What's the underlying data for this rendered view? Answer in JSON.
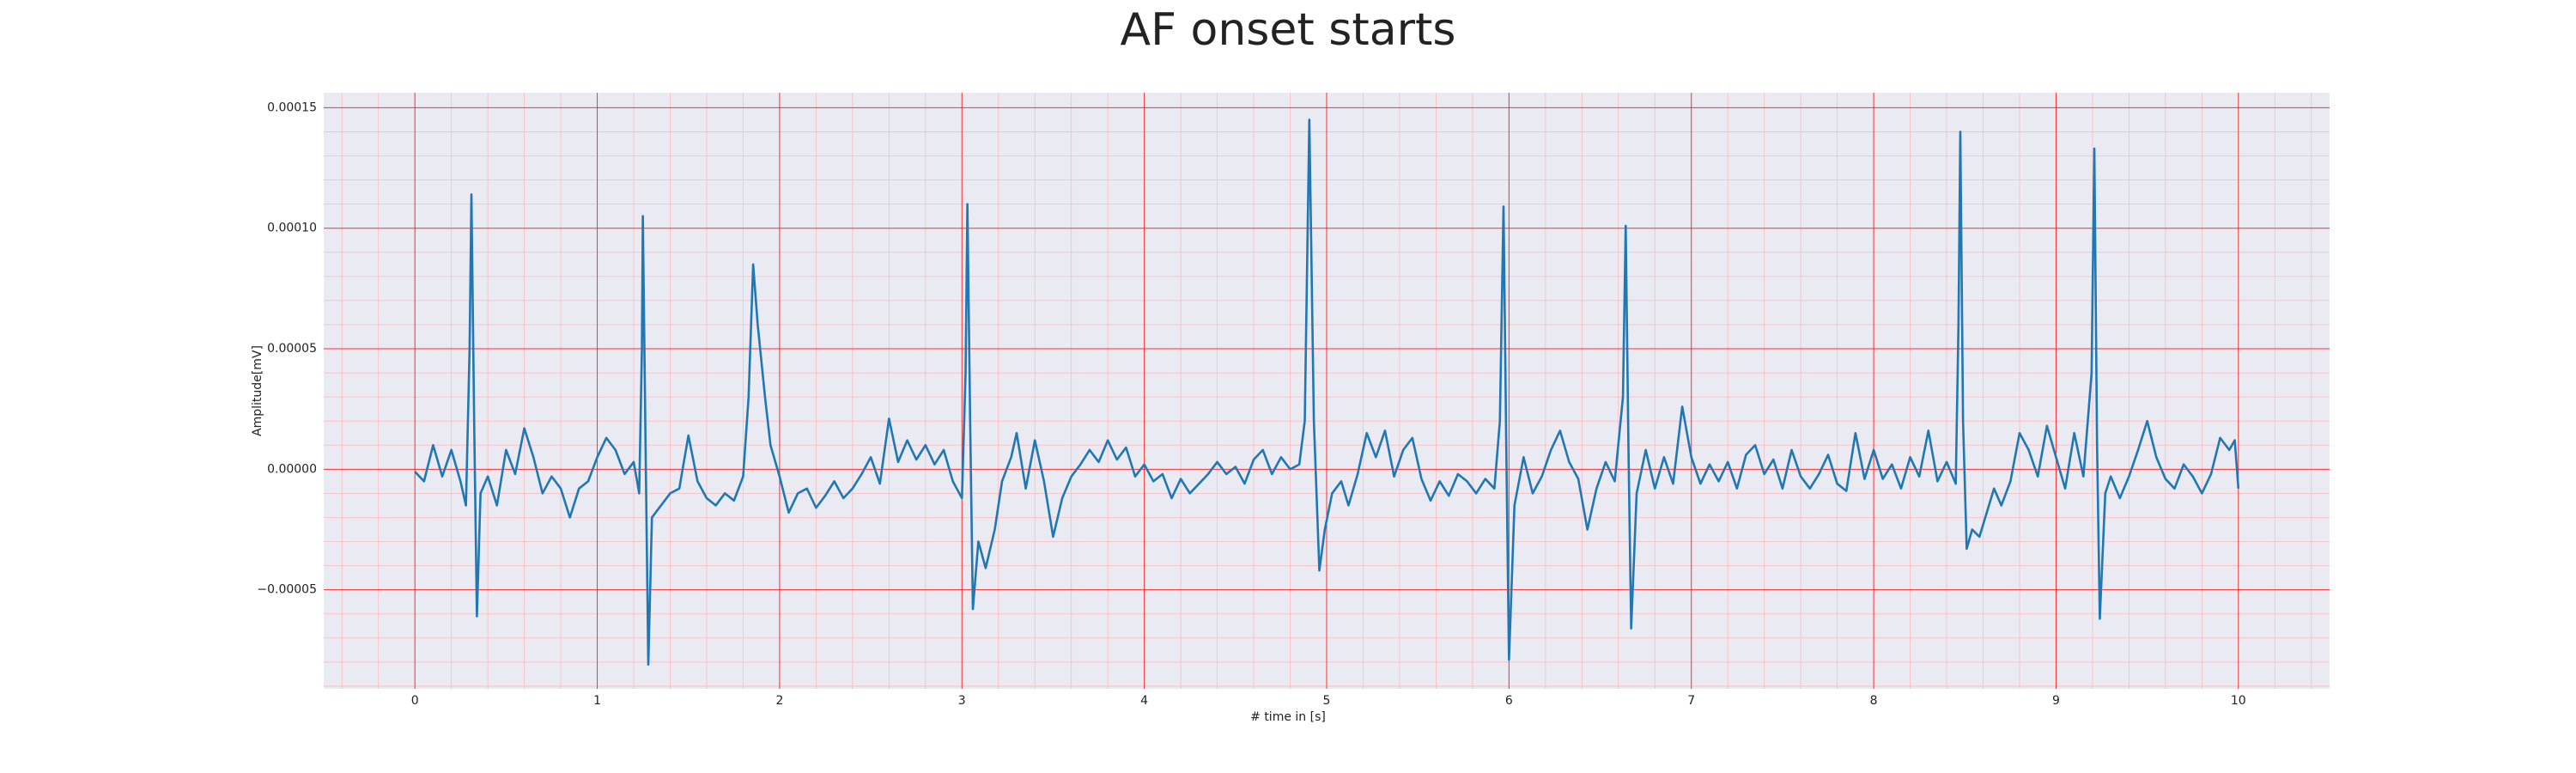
{
  "chart_data": {
    "type": "line",
    "title": "AF onset starts",
    "xlabel": "# time in [s]",
    "ylabel": "Amplitude[mV]",
    "color": "#1f77b4",
    "xlim": [
      -0.5,
      10.5
    ],
    "xticks": [
      0,
      1,
      2,
      3,
      4,
      5,
      6,
      7,
      8,
      9,
      10
    ],
    "ylim": [
      -9.11e-05,
      0.0001562
    ],
    "yticks": [
      {
        "value": -5e-05,
        "label": "−0.00005"
      },
      {
        "value": 0,
        "label": "0.00000"
      },
      {
        "value": 5e-05,
        "label": "0.00005"
      },
      {
        "value": 0.0001,
        "label": "0.00010"
      },
      {
        "value": 0.00015,
        "label": "0.00015"
      }
    ],
    "grid": true,
    "minor_grid_divisions": 5,
    "x": [
      0.0,
      0.05,
      0.1,
      0.15,
      0.2,
      0.25,
      0.28,
      0.3,
      0.31,
      0.325,
      0.34,
      0.36,
      0.4,
      0.45,
      0.5,
      0.55,
      0.6,
      0.65,
      0.7,
      0.75,
      0.8,
      0.85,
      0.9,
      0.95,
      1.0,
      1.05,
      1.1,
      1.15,
      1.2,
      1.23,
      1.245,
      1.25,
      1.265,
      1.28,
      1.3,
      1.35,
      1.4,
      1.45,
      1.5,
      1.55,
      1.6,
      1.65,
      1.7,
      1.75,
      1.8,
      1.83,
      1.855,
      1.88,
      1.92,
      1.95,
      2.0,
      2.05,
      2.1,
      2.15,
      2.2,
      2.25,
      2.3,
      2.35,
      2.4,
      2.45,
      2.5,
      2.55,
      2.6,
      2.65,
      2.7,
      2.75,
      2.8,
      2.85,
      2.9,
      2.95,
      3.0,
      3.02,
      3.03,
      3.045,
      3.06,
      3.09,
      3.13,
      3.18,
      3.22,
      3.27,
      3.3,
      3.35,
      3.4,
      3.45,
      3.5,
      3.55,
      3.6,
      3.65,
      3.7,
      3.75,
      3.8,
      3.85,
      3.9,
      3.95,
      4.0,
      4.05,
      4.1,
      4.15,
      4.2,
      4.25,
      4.3,
      4.35,
      4.4,
      4.45,
      4.5,
      4.55,
      4.6,
      4.65,
      4.7,
      4.75,
      4.8,
      4.85,
      4.88,
      4.905,
      4.93,
      4.96,
      4.99,
      5.03,
      5.08,
      5.12,
      5.17,
      5.22,
      5.27,
      5.32,
      5.37,
      5.42,
      5.47,
      5.52,
      5.57,
      5.62,
      5.67,
      5.72,
      5.77,
      5.82,
      5.87,
      5.92,
      5.95,
      5.97,
      5.985,
      6.0,
      6.03,
      6.08,
      6.13,
      6.18,
      6.23,
      6.28,
      6.33,
      6.38,
      6.43,
      6.48,
      6.53,
      6.58,
      6.625,
      6.64,
      6.655,
      6.67,
      6.7,
      6.75,
      6.8,
      6.85,
      6.9,
      6.95,
      7.0,
      7.05,
      7.1,
      7.15,
      7.2,
      7.25,
      7.3,
      7.35,
      7.4,
      7.45,
      7.5,
      7.55,
      7.6,
      7.65,
      7.7,
      7.75,
      7.8,
      7.85,
      7.9,
      7.95,
      8.0,
      8.05,
      8.1,
      8.15,
      8.2,
      8.25,
      8.3,
      8.35,
      8.4,
      8.45,
      8.465,
      8.475,
      8.49,
      8.51,
      8.54,
      8.58,
      8.62,
      8.66,
      8.7,
      8.75,
      8.8,
      8.85,
      8.9,
      8.95,
      9.0,
      9.05,
      9.1,
      9.15,
      9.195,
      9.21,
      9.225,
      9.24,
      9.27,
      9.3,
      9.35,
      9.4,
      9.45,
      9.5,
      9.55,
      9.6,
      9.65,
      9.7,
      9.75,
      9.8,
      9.85,
      9.9,
      9.95,
      9.98,
      10.0
    ],
    "values": [
      -1e-06,
      -5e-06,
      1e-05,
      -3e-06,
      8e-06,
      -5e-06,
      -1.5e-05,
      5e-05,
      0.000114,
      2e-05,
      -6.1e-05,
      -1e-05,
      -3e-06,
      -1.5e-05,
      8e-06,
      -2e-06,
      1.7e-05,
      5e-06,
      -1e-05,
      -3e-06,
      -8e-06,
      -2e-05,
      -8e-06,
      -5e-06,
      5e-06,
      1.3e-05,
      8e-06,
      -2e-06,
      3e-06,
      -1e-05,
      5e-05,
      0.000105,
      1e-05,
      -8.1e-05,
      -2e-05,
      -1.5e-05,
      -1e-05,
      -8e-06,
      1.4e-05,
      -5e-06,
      -1.2e-05,
      -1.5e-05,
      -1e-05,
      -1.3e-05,
      -3e-06,
      3e-05,
      8.5e-05,
      6e-05,
      3e-05,
      1e-05,
      -3e-06,
      -1.8e-05,
      -1e-05,
      -8e-06,
      -1.6e-05,
      -1.1e-05,
      -5e-06,
      -1.2e-05,
      -8e-06,
      -2e-06,
      5e-06,
      -6e-06,
      2.1e-05,
      3e-06,
      1.2e-05,
      4e-06,
      1e-05,
      2e-06,
      8e-06,
      -5e-06,
      -1.2e-05,
      4e-05,
      0.00011,
      2e-05,
      -5.8e-05,
      -3e-05,
      -4.1e-05,
      -2.5e-05,
      -5e-06,
      5e-06,
      1.5e-05,
      -8e-06,
      1.2e-05,
      -5e-06,
      -2.8e-05,
      -1.2e-05,
      -3e-06,
      2e-06,
      8e-06,
      3e-06,
      1.2e-05,
      4e-06,
      9e-06,
      -3e-06,
      2e-06,
      -5e-06,
      -2e-06,
      -1.2e-05,
      -4e-06,
      -1e-05,
      -6e-06,
      -2e-06,
      3e-06,
      -2e-06,
      1e-06,
      -6e-06,
      4e-06,
      8e-06,
      -2e-06,
      5e-06,
      0.0,
      2e-06,
      2e-05,
      0.000145,
      2e-05,
      -4.2e-05,
      -2.5e-05,
      -1e-05,
      -5e-06,
      -1.5e-05,
      -2e-06,
      1.5e-05,
      5e-06,
      1.6e-05,
      -3e-06,
      8e-06,
      1.3e-05,
      -4e-06,
      -1.3e-05,
      -5e-06,
      -1.1e-05,
      -2e-06,
      -5e-06,
      -1e-05,
      -4e-06,
      -8e-06,
      2e-05,
      0.000109,
      1e-05,
      -7.9e-05,
      -1.5e-05,
      5e-06,
      -1e-05,
      -3e-06,
      8e-06,
      1.6e-05,
      3e-06,
      -4e-06,
      -2.5e-05,
      -8e-06,
      3e-06,
      -5e-06,
      3e-05,
      0.000101,
      1e-05,
      -6.6e-05,
      -1e-05,
      8e-06,
      -8e-06,
      5e-06,
      -6e-06,
      2.6e-05,
      5e-06,
      -6e-06,
      2e-06,
      -5e-06,
      3e-06,
      -8e-06,
      6e-06,
      1e-05,
      -2e-06,
      4e-06,
      -8e-06,
      8e-06,
      -3e-06,
      -8e-06,
      -2e-06,
      6e-06,
      -6e-06,
      -9e-06,
      1.5e-05,
      -4e-06,
      8e-06,
      -4e-06,
      2e-06,
      -8e-06,
      5e-06,
      -3e-06,
      1.6e-05,
      -5e-06,
      3e-06,
      -6e-06,
      6e-05,
      0.00014,
      2e-05,
      -3.3e-05,
      -2.5e-05,
      -2.8e-05,
      -1.8e-05,
      -8e-06,
      -1.5e-05,
      -5e-06,
      1.5e-05,
      8e-06,
      -3e-06,
      1.8e-05,
      5e-06,
      -8e-06,
      1.5e-05,
      -3e-06,
      4e-05,
      0.000133,
      1e-05,
      -6.2e-05,
      -1e-05,
      -3e-06,
      -1.2e-05,
      -3e-06,
      8e-06,
      2e-05,
      5e-06,
      -4e-06,
      -8e-06,
      2e-06,
      -3e-06,
      -1e-05,
      -2e-06,
      1.3e-05,
      8e-06,
      1.2e-05,
      -8e-06
    ]
  }
}
